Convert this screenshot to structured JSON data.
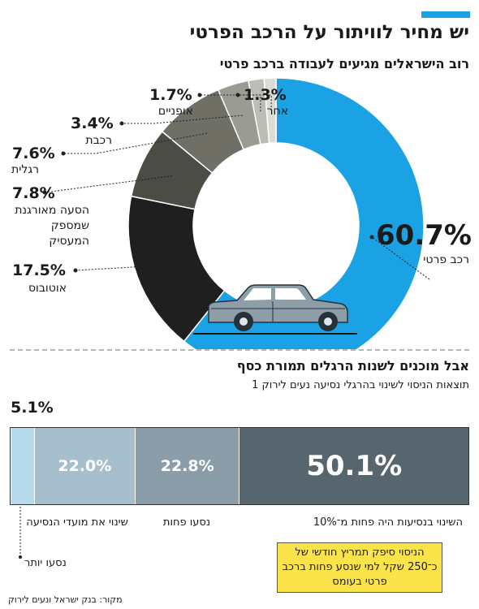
{
  "header": {
    "title": "יש מחיר לוויתור על הרכב הפרטי",
    "subtitle": "רוב הישראלים מגיעים לעבודה ברכב פרטי"
  },
  "colors": {
    "accent": "#1ba2e4",
    "private_car": "#1ba2e4",
    "bus": "#1f1f1f",
    "employer_shuttle": "#4c4c46",
    "walking": "#6f6f66",
    "train": "#9b9b91",
    "bicycle": "#bdbdb5",
    "other": "#dcdcd6",
    "bar_less": "#56656e",
    "bar_fewer": "#8a9da9",
    "bar_times": "#a7bfcd",
    "bar_more": "#b7d9ec"
  },
  "section2": {
    "title": "אבל מוכנים לשנות הרגלים תמורת כסף",
    "subtitle": "תוצאות הניסוי לשינוי בהרגלי נסיעה נעים לירוק 1"
  },
  "callout": "הניסוי סיפק תמריץ חודשי של כ־250 שקל למי שנסע פחות ברכב פרטי בעומס",
  "source": "מקור: בנק ישראל ונעים לירוק",
  "chart_data": [
    {
      "type": "pie",
      "style": "donut",
      "title": "רוב הישראלים מגיעים לעבודה ברכב פרטי",
      "slices": [
        {
          "label": "רכב פרטי",
          "value": 60.7,
          "value_label": "60.7%",
          "color": "#1ba2e4"
        },
        {
          "label": "אוטובוס",
          "value": 17.5,
          "value_label": "17.5%",
          "color": "#1f1f1f"
        },
        {
          "label": "הסעה מאורגנת שמספק המעסיק",
          "value": 7.8,
          "value_label": "7.8%",
          "color": "#4c4c46"
        },
        {
          "label": "רגלית",
          "value": 7.6,
          "value_label": "7.6%",
          "color": "#6f6f66"
        },
        {
          "label": "רכבת",
          "value": 3.4,
          "value_label": "3.4%",
          "color": "#9b9b91"
        },
        {
          "label": "אופניים",
          "value": 1.7,
          "value_label": "1.7%",
          "color": "#bdbdb5"
        },
        {
          "label": "אחר",
          "value": 1.3,
          "value_label": "1.3%",
          "color": "#dcdcd6"
        }
      ]
    },
    {
      "type": "bar",
      "orientation": "horizontal-stacked",
      "title": "אבל מוכנים לשנות הרגלים תמורת כסף",
      "segments": [
        {
          "label": "השינוי בנסיעות היה פחות מ־10%",
          "value": 50.1,
          "value_label": "50.1%",
          "color": "#56656e"
        },
        {
          "label": "נסעו פחות",
          "value": 22.8,
          "value_label": "22.8%",
          "color": "#8a9da9"
        },
        {
          "label": "שינוי את מועדי הנסיעה",
          "value": 22.0,
          "value_label": "22.0%",
          "color": "#a7bfcd"
        },
        {
          "label": "נסעו יותר",
          "value": 5.1,
          "value_label": "5.1%",
          "color": "#b7d9ec"
        }
      ]
    }
  ]
}
